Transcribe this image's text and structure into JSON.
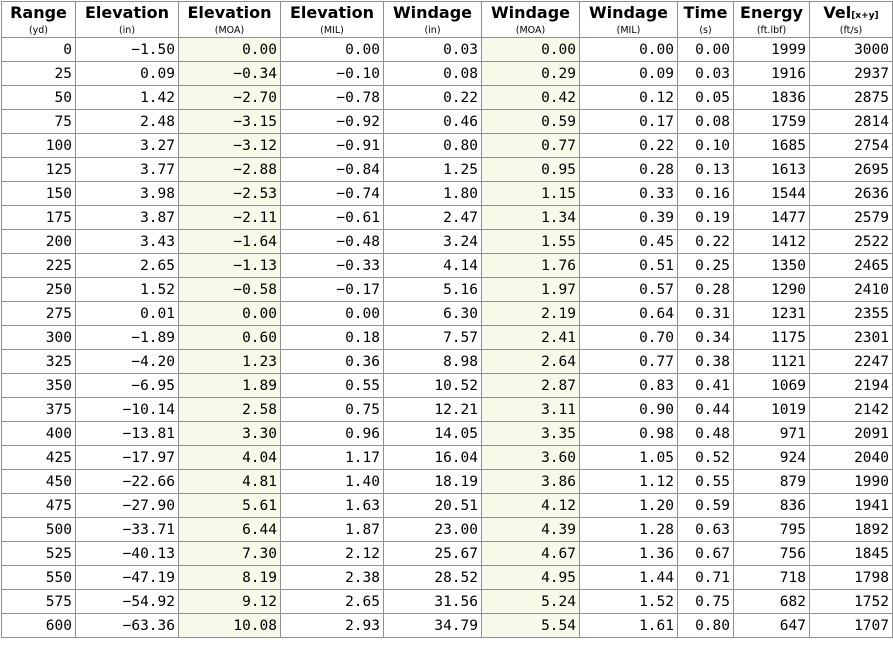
{
  "columns": [
    {
      "title": "Range",
      "unit": "(yd)"
    },
    {
      "title": "Elevation",
      "unit": "(in)"
    },
    {
      "title": "Elevation",
      "unit": "(MOA)"
    },
    {
      "title": "Elevation",
      "unit": "(MIL)"
    },
    {
      "title": "Windage",
      "unit": "(in)"
    },
    {
      "title": "Windage",
      "unit": "(MOA)"
    },
    {
      "title": "Windage",
      "unit": "(MIL)"
    },
    {
      "title": "Time",
      "unit": "(s)"
    },
    {
      "title": "Energy",
      "unit": "(ft.lbf)"
    },
    {
      "title": "Vel",
      "title_sub": "[x+y]",
      "unit": "(ft/s)"
    }
  ],
  "rows": [
    [
      "0",
      "−1.50",
      "0.00",
      "0.00",
      "0.03",
      "0.00",
      "0.00",
      "0.00",
      "1999",
      "3000"
    ],
    [
      "25",
      "0.09",
      "−0.34",
      "−0.10",
      "0.08",
      "0.29",
      "0.09",
      "0.03",
      "1916",
      "2937"
    ],
    [
      "50",
      "1.42",
      "−2.70",
      "−0.78",
      "0.22",
      "0.42",
      "0.12",
      "0.05",
      "1836",
      "2875"
    ],
    [
      "75",
      "2.48",
      "−3.15",
      "−0.92",
      "0.46",
      "0.59",
      "0.17",
      "0.08",
      "1759",
      "2814"
    ],
    [
      "100",
      "3.27",
      "−3.12",
      "−0.91",
      "0.80",
      "0.77",
      "0.22",
      "0.10",
      "1685",
      "2754"
    ],
    [
      "125",
      "3.77",
      "−2.88",
      "−0.84",
      "1.25",
      "0.95",
      "0.28",
      "0.13",
      "1613",
      "2695"
    ],
    [
      "150",
      "3.98",
      "−2.53",
      "−0.74",
      "1.80",
      "1.15",
      "0.33",
      "0.16",
      "1544",
      "2636"
    ],
    [
      "175",
      "3.87",
      "−2.11",
      "−0.61",
      "2.47",
      "1.34",
      "0.39",
      "0.19",
      "1477",
      "2579"
    ],
    [
      "200",
      "3.43",
      "−1.64",
      "−0.48",
      "3.24",
      "1.55",
      "0.45",
      "0.22",
      "1412",
      "2522"
    ],
    [
      "225",
      "2.65",
      "−1.13",
      "−0.33",
      "4.14",
      "1.76",
      "0.51",
      "0.25",
      "1350",
      "2465"
    ],
    [
      "250",
      "1.52",
      "−0.58",
      "−0.17",
      "5.16",
      "1.97",
      "0.57",
      "0.28",
      "1290",
      "2410"
    ],
    [
      "275",
      "0.01",
      "0.00",
      "0.00",
      "6.30",
      "2.19",
      "0.64",
      "0.31",
      "1231",
      "2355"
    ],
    [
      "300",
      "−1.89",
      "0.60",
      "0.18",
      "7.57",
      "2.41",
      "0.70",
      "0.34",
      "1175",
      "2301"
    ],
    [
      "325",
      "−4.20",
      "1.23",
      "0.36",
      "8.98",
      "2.64",
      "0.77",
      "0.38",
      "1121",
      "2247"
    ],
    [
      "350",
      "−6.95",
      "1.89",
      "0.55",
      "10.52",
      "2.87",
      "0.83",
      "0.41",
      "1069",
      "2194"
    ],
    [
      "375",
      "−10.14",
      "2.58",
      "0.75",
      "12.21",
      "3.11",
      "0.90",
      "0.44",
      "1019",
      "2142"
    ],
    [
      "400",
      "−13.81",
      "3.30",
      "0.96",
      "14.05",
      "3.35",
      "0.98",
      "0.48",
      "971",
      "2091"
    ],
    [
      "425",
      "−17.97",
      "4.04",
      "1.17",
      "16.04",
      "3.60",
      "1.05",
      "0.52",
      "924",
      "2040"
    ],
    [
      "450",
      "−22.66",
      "4.81",
      "1.40",
      "18.19",
      "3.86",
      "1.12",
      "0.55",
      "879",
      "1990"
    ],
    [
      "475",
      "−27.90",
      "5.61",
      "1.63",
      "20.51",
      "4.12",
      "1.20",
      "0.59",
      "836",
      "1941"
    ],
    [
      "500",
      "−33.71",
      "6.44",
      "1.87",
      "23.00",
      "4.39",
      "1.28",
      "0.63",
      "795",
      "1892"
    ],
    [
      "525",
      "−40.13",
      "7.30",
      "2.12",
      "25.67",
      "4.67",
      "1.36",
      "0.67",
      "756",
      "1845"
    ],
    [
      "550",
      "−47.19",
      "8.19",
      "2.38",
      "28.52",
      "4.95",
      "1.44",
      "0.71",
      "718",
      "1798"
    ],
    [
      "575",
      "−54.92",
      "9.12",
      "2.65",
      "31.56",
      "5.24",
      "1.52",
      "0.75",
      "682",
      "1752"
    ],
    [
      "600",
      "−63.36",
      "10.08",
      "2.93",
      "34.79",
      "5.54",
      "1.61",
      "0.80",
      "647",
      "1707"
    ]
  ],
  "colors": {
    "border": "#8f8f8f",
    "moa_column_background": "#f6fbe9",
    "text": "#000000"
  }
}
